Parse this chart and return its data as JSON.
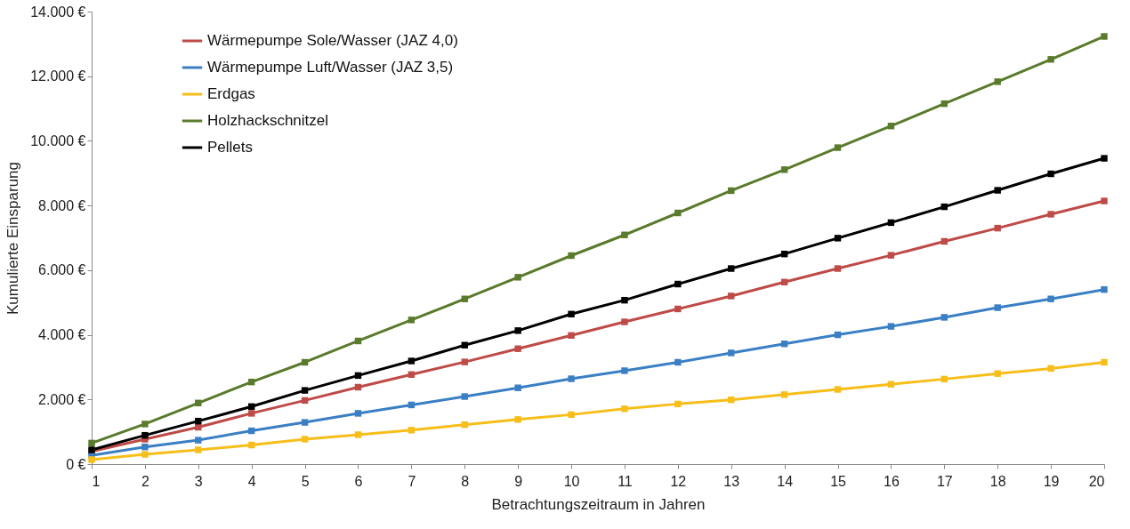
{
  "chart_data": {
    "type": "line",
    "xlabel": "Betrachtungszeitraum in Jahren",
    "ylabel": "Kumulierte Einsparung",
    "x": [
      1,
      2,
      3,
      4,
      5,
      6,
      7,
      8,
      9,
      10,
      11,
      12,
      13,
      14,
      15,
      16,
      17,
      18,
      19,
      20
    ],
    "xlim": [
      1,
      20
    ],
    "xticks": [
      1,
      2,
      3,
      4,
      5,
      6,
      7,
      8,
      9,
      10,
      11,
      12,
      13,
      14,
      15,
      16,
      17,
      18,
      19,
      20
    ],
    "ylim": [
      0,
      14000
    ],
    "yticks": [
      {
        "value": 0,
        "label": "0 €"
      },
      {
        "value": 2000,
        "label": "2.000 €"
      },
      {
        "value": 4000,
        "label": "4.000 €"
      },
      {
        "value": 6000,
        "label": "6.000 €"
      },
      {
        "value": 8000,
        "label": "8.000 €"
      },
      {
        "value": 10000,
        "label": "10.000 €"
      },
      {
        "value": 12000,
        "label": "12.000 €"
      },
      {
        "value": 14000,
        "label": "14.000 €"
      }
    ],
    "grid": false,
    "legend": "top left",
    "marker": "square",
    "line_style": "solid",
    "series": [
      {
        "name": "Wärmepumpe Sole/Wasser (JAZ 4,0)",
        "color": "#be4b48",
        "values": [
          390,
          770,
          1140,
          1570,
          1970,
          2380,
          2770,
          3160,
          3570,
          3980,
          4400,
          4800,
          5200,
          5630,
          6050,
          6460,
          6890,
          7300,
          7730,
          8140
        ]
      },
      {
        "name": "Wärmepumpe Luft/Wasser  (JAZ 3,5)",
        "color": "#3a7fc4",
        "values": [
          270,
          530,
          740,
          1030,
          1290,
          1570,
          1830,
          2090,
          2360,
          2640,
          2890,
          3150,
          3440,
          3720,
          4000,
          4260,
          4540,
          4840,
          5110,
          5400
        ]
      },
      {
        "name": "Erdgas",
        "color": "#f7be1a",
        "values": [
          140,
          300,
          440,
          590,
          770,
          910,
          1050,
          1220,
          1380,
          1530,
          1710,
          1860,
          1990,
          2150,
          2310,
          2470,
          2630,
          2800,
          2960,
          3150
        ]
      },
      {
        "name": "Holzhackschnitzel",
        "color": "#5a7a2c",
        "values": [
          650,
          1240,
          1890,
          2540,
          3150,
          3810,
          4460,
          5110,
          5780,
          6450,
          7090,
          7770,
          8460,
          9110,
          9790,
          10460,
          11150,
          11830,
          12520,
          13230
        ]
      },
      {
        "name": "Pellets",
        "color": "#000000",
        "values": [
          440,
          890,
          1330,
          1780,
          2280,
          2740,
          3190,
          3680,
          4130,
          4640,
          5070,
          5570,
          6050,
          6500,
          6990,
          7470,
          7960,
          8470,
          8980,
          9460
        ]
      }
    ]
  }
}
